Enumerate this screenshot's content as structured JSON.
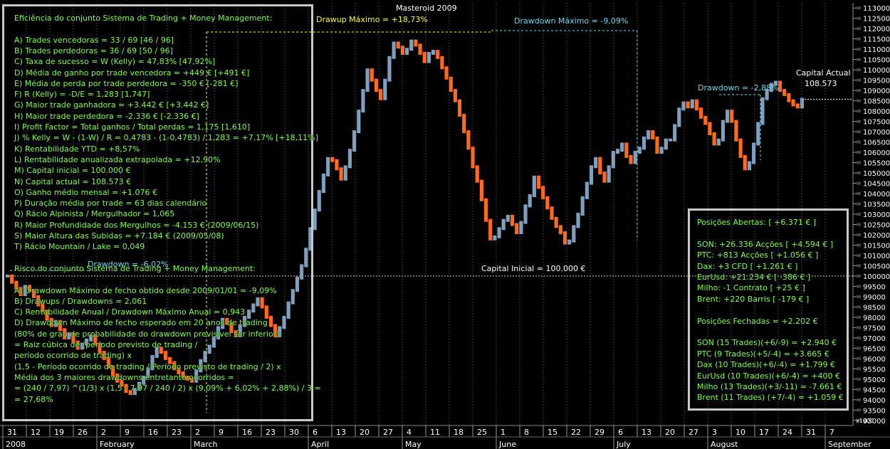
{
  "chart_title": "Masteroid 2009",
  "colors": {
    "background": "#000000",
    "bar_up": "#7f9fbf",
    "bar_down": "#ff6a1f",
    "text_green": "#7cff3f",
    "drawdown": "#66ddee",
    "drawup": "#ffff00",
    "grid": "#666666",
    "panel_border": "#c8c8c8"
  },
  "left_panel": {
    "lines": [
      "Eficiência do conjunto Sistema de Trading + Money Management:",
      "",
      "A) Trades vencedoras = 33 / 69   [46 / 96]",
      "B) Trades perdedoras = 36 / 69   [50 / 96]",
      "C) Taxa de sucesso = W (Kelly) = 47,83%   [47,92%]",
      "D) Média de ganho por trade vencedora = +449 €   [+491 €]",
      "E) Média de perda por trade perdedora = -350 €   [-281 €]",
      "F) R (Kelly) = -D/E = 1,283   [1,747]",
      "G) Maior trade ganhadora = +3.442 €   [+3.442 €]",
      "H) Maior trade perdedora = -2.336 €   [-2.336 €]",
      "I) Profit Factor = Total ganhos / Total perdas = 1,175   [1,610]",
      "J) % Kelly = W - (1-W) / R = 0,4783 - (1-0,4783) / 1,283 = +7,17%   [+18,11%]",
      "K) Rentabilidade YTD = +8,57%",
      "L) Rentabilidade anualizada extrapolada = +12,90%",
      "M) Capital inicial = 100.000 €",
      "N) Capital actual = 108.573 €",
      "O) Ganho médio mensal = +1.076 €",
      "P) Duração média por trade = 63 dias calendário",
      "Q) Rácio Alpinista / Mergulhador = 1,065",
      "R) Maior Profundidade dos Mergulhos = -4.153 € (2009/06/15)",
      "S) Maior Altura das Subidas = +7.184 € (2009/05/08)",
      "T) Rácio Mountain / Lake = 0,049",
      "",
      "Risco do conjunto Sistema de Trading + Money Management:",
      "",
      "A) Drawdown Máximo de fecho obtido desde 2009/01/01 = -9,09%",
      "B) Drawups / Drawdowns = 2,061",
      "C) Rentabilidade Anual / Drawdown Máximo Anual = 0,943",
      "D) Drawdown Máximo de fecho esperado em 20 anos de trading",
      "(80% de grau de probabilidade do drawdown previsível ser inferior):",
      "= Raiz cúbica de (período previsto de trading /",
      "período ocorrido de trading) x",
      "(1,5 - Período ocorrido de trading / Período previsto de trading / 2) x",
      "Média dos 3 maiores drawdowns entretanto ocorridos =",
      "= (240 / 7,97) ^(1/3) x (1,5 - 7,97 / 240 / 2) x (9,09% + 6,02% + 2,88%) / 3 =",
      "= 27,68%"
    ]
  },
  "right_panel": {
    "lines": [
      "Posições Abertas: [ +6.371 € ]",
      "",
      "SON: +26.336 Acções [ +4.594 € ]",
      "PTC: +813 Acções [ +1.056 € ]",
      "Dax: +3 CFD [ +1.261 € ]",
      "EurUsd: +21.234 € [ -386 € ]",
      "Milho: -1 Contrato [ +25 € ]",
      "Brent: +220 Barris [ -179 € ]",
      "",
      "Posições Fechadas = +2.202 €",
      "",
      "SON (15 Trades)(+6/-9) = +2.940 €",
      "PTC (9 Trades)(+5/-4) = +3.665 €",
      "Dax (10 Trades)(+6/-4) = +1.799 €",
      "EurUsd (10 Trades)(+6/-4) = +400 €",
      "Milho (13 Trades)(+3/-11) = -7.661 €",
      "Brent (11 Trades) (+7/-4) = +1.059 €"
    ]
  },
  "annotations": {
    "drawup_max": "Drawup Máximo = +18,73%",
    "drawdown_max": "Drawdown Máximo = -9,09%",
    "drawdown_recent": "Drawdown = -2,88%",
    "drawdown_early": "Drawdown = -6,02%",
    "capital_inicial": "Capital Inicial = 100.000 €",
    "capital_actual_label": "Capital Actual",
    "capital_actual_value": "108.573"
  },
  "chart_data": {
    "type": "bar",
    "y_unit": "€",
    "ylim": [
      92750,
      113250
    ],
    "y_ticks": [
      93000,
      93500,
      94000,
      94500,
      95000,
      95500,
      96000,
      96500,
      97000,
      97500,
      98000,
      98500,
      99000,
      99500,
      100000,
      100500,
      101000,
      101500,
      102000,
      102500,
      103000,
      103500,
      104000,
      104500,
      105000,
      105500,
      106000,
      106500,
      107000,
      107500,
      108000,
      108500,
      109000,
      109500,
      110000,
      110500,
      111000,
      111500,
      112000,
      112500,
      113000
    ],
    "y_tick_labels": [
      "93000",
      "93500",
      "94000",
      "94500",
      "95000",
      "95500",
      "96000",
      "96500",
      "97000",
      "97500",
      "98000",
      "98500",
      "99000",
      "99500",
      "100000",
      "100500",
      "101000",
      "101500",
      "102000",
      "102500",
      "103000",
      "103500",
      "104000",
      "104500",
      "105000",
      "105500",
      "106000",
      "106500",
      "107000",
      "107500",
      "108000",
      "108500",
      "109000",
      "109500",
      "110000",
      "110500",
      "111000",
      "111500",
      "112000",
      "112500",
      "113000"
    ],
    "x_day_labels": [
      "31",
      "12",
      "19",
      "26",
      "2",
      "9",
      "16",
      "23",
      "2",
      "9",
      "16",
      "23",
      "30",
      "6",
      "13",
      "20",
      "27",
      "4",
      "11",
      "18",
      "25",
      "1",
      "8",
      "15",
      "22",
      "29",
      "6",
      "13",
      "20",
      "27",
      "3",
      "10",
      "17",
      "24",
      "31",
      "7"
    ],
    "x_month_labels": [
      "2008",
      "February",
      "March",
      "April",
      "May",
      "June",
      "July",
      "August",
      "September"
    ],
    "scale_note": "x1000",
    "closes": [
      100000,
      99700,
      99400,
      99100,
      99500,
      99300,
      99000,
      98600,
      98300,
      97900,
      97600,
      97800,
      97400,
      97000,
      97200,
      96800,
      96500,
      96700,
      96900,
      97100,
      96700,
      96300,
      96000,
      95600,
      95200,
      94900,
      94700,
      94400,
      94300,
      94500,
      94800,
      95100,
      95500,
      96100,
      96500,
      96300,
      96000,
      95800,
      95500,
      95300,
      95100,
      95000,
      94900,
      95400,
      95900,
      96300,
      96600,
      97000,
      97500,
      97900,
      97700,
      97300,
      97100,
      97600,
      98000,
      98300,
      98600,
      98900,
      98500,
      98000,
      97600,
      97100,
      97500,
      98000,
      98700,
      99300,
      99900,
      100500,
      101300,
      102300,
      103200,
      104100,
      104900,
      105700,
      105600,
      105200,
      104700,
      105300,
      106100,
      107000,
      108000,
      109000,
      110000,
      109500,
      109000,
      108600,
      109500,
      110600,
      111300,
      111100,
      110800,
      111000,
      111400,
      111200,
      110800,
      110400,
      110800,
      110900,
      110600,
      110100,
      109600,
      109000,
      108500,
      107800,
      107000,
      106200,
      105300,
      104600,
      103700,
      102700,
      101800,
      101900,
      102300,
      102700,
      102900,
      102500,
      102100,
      102600,
      103400,
      103900,
      104800,
      104300,
      103800,
      103300,
      102800,
      102400,
      102100,
      101600,
      101700,
      102400,
      103000,
      103800,
      104500,
      105300,
      105700,
      105000,
      104600,
      105300,
      106000,
      106100,
      106400,
      105800,
      105500,
      106000,
      106200,
      106700,
      107000,
      106700,
      106000,
      106200,
      106600,
      106600,
      107300,
      108100,
      108400,
      108200,
      108500,
      108100,
      107700,
      107400,
      106900,
      106400,
      106600,
      107500,
      108000,
      107500,
      106600,
      105800,
      105200,
      105500,
      106400,
      107400,
      108600,
      109000,
      109300,
      109400,
      109000,
      108800,
      108500,
      108300,
      108200,
      108573
    ]
  }
}
